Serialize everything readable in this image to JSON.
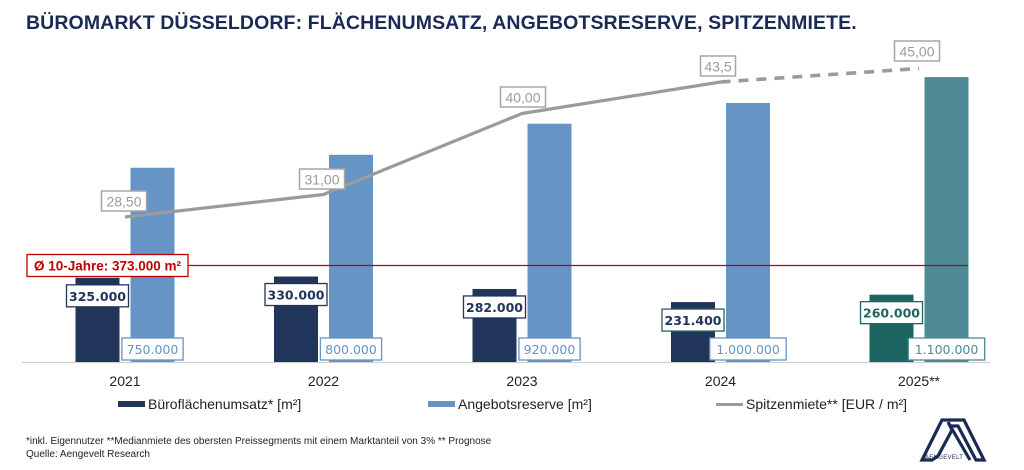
{
  "title": "BÜROMARKT DÜSSELDORF: FLÄCHENUMSATZ, ANGEBOTSRESERVE, SPITZENMIETE.",
  "chart_data": {
    "type": "bar",
    "title": "BÜROMARKT DÜSSELDORF: FLÄCHENUMSATZ, ANGEBOTSRESERVE, SPITZENMIETE.",
    "categories": [
      "2021",
      "2022",
      "2023",
      "2024",
      "2025**"
    ],
    "series": [
      {
        "name": "Büroflächenumsatz* [m²]",
        "kind": "bar",
        "axis": "primary",
        "values": [
          325000,
          330000,
          282000,
          231400,
          260000
        ],
        "labels": [
          "325.000",
          "330.000",
          "282.000",
          "231.400",
          "260.000"
        ],
        "color": "#21355a",
        "forecast_color": "#1e6460"
      },
      {
        "name": "Angebotsreserve [m²]",
        "kind": "bar",
        "axis": "primary",
        "values": [
          750000,
          800000,
          920000,
          1000000,
          1100000
        ],
        "labels": [
          "750.000",
          "800.000",
          "920.000",
          "1.000.000",
          "1.100.000"
        ],
        "color": "#6594c5",
        "forecast_color": "#4e8b96"
      },
      {
        "name": "Spitzenmiete** [EUR / m²]",
        "kind": "line",
        "axis": "secondary",
        "values": [
          28.5,
          31.0,
          40.0,
          43.5,
          45.0
        ],
        "labels": [
          "28,50",
          "31,00",
          "40,00",
          "43,5",
          "45,00"
        ],
        "color": "#9b9b9b",
        "forecast_dashed_from_index": 3
      }
    ],
    "reference_line": {
      "label": "Ø 10-Jahre: 373.000 m²",
      "value": 373000,
      "color": "#c00000"
    },
    "forecast_categories": [
      "2025**"
    ],
    "xlabel": "",
    "ylabel": "",
    "ylim": [
      0,
      1400000
    ],
    "y2lim": [
      0,
      52
    ],
    "grid": false,
    "legend_position": "bottom"
  },
  "legend": [
    {
      "label": "Büroflächenumsatz* [m²]",
      "type": "bar",
      "color": "#21355a"
    },
    {
      "label": "Angebotsreserve [m²]",
      "type": "bar",
      "color": "#6594c5"
    },
    {
      "label": "Spitzenmiete** [EUR / m²]",
      "type": "line",
      "color": "#9b9b9b"
    }
  ],
  "footnotes": {
    "line1": "*inkl. Eigennutzer **Medianmiete des obersten Preissegments mit einem Marktanteil von 3% ** Prognose",
    "line2": "Quelle: Aengevelt Research"
  },
  "logo": {
    "text": "AENGEVELT",
    "color": "#1b2a55"
  }
}
